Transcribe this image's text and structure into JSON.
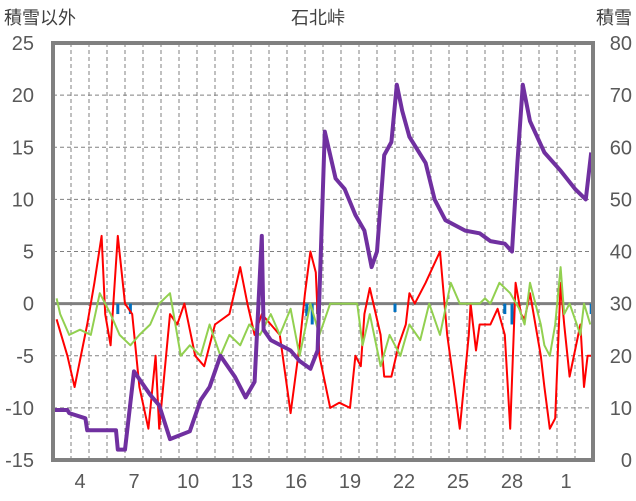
{
  "chart_data": {
    "type": "line",
    "title": "石北峠",
    "ylabel_left": "積雪以外",
    "ylabel_right": "積雪",
    "ylim_left": [
      -15,
      25
    ],
    "ylim_right": [
      0,
      80
    ],
    "yticks_left": [
      "25",
      "20",
      "15",
      "10",
      "5",
      "0",
      "-5",
      "-10",
      "-15"
    ],
    "yticks_right": [
      "80",
      "70",
      "60",
      "50",
      "40",
      "30",
      "20",
      "10",
      "0"
    ],
    "xlim_days": [
      0,
      30
    ],
    "xticks": [
      {
        "day": 1,
        "label": "4"
      },
      {
        "day": 4,
        "label": "7"
      },
      {
        "day": 7,
        "label": "10"
      },
      {
        "day": 10,
        "label": "13"
      },
      {
        "day": 13,
        "label": "16"
      },
      {
        "day": 16,
        "label": "19"
      },
      {
        "day": 19,
        "label": "22"
      },
      {
        "day": 22,
        "label": "25"
      },
      {
        "day": 25,
        "label": "28"
      },
      {
        "day": 28,
        "label": "1"
      }
    ],
    "grid": true,
    "colors": {
      "red": "#ff0000",
      "green": "#92d050",
      "purple": "#7030a0",
      "blue": "#0070c0",
      "axis": "#808080"
    },
    "series": [
      {
        "name": "red",
        "axis": "left",
        "points": [
          [
            0.2,
            -1.5
          ],
          [
            0.8,
            -5
          ],
          [
            1.2,
            -8
          ],
          [
            1.9,
            -2
          ],
          [
            2.3,
            2
          ],
          [
            2.7,
            6.5
          ],
          [
            2.9,
            -1
          ],
          [
            3.2,
            -4
          ],
          [
            3.6,
            6.5
          ],
          [
            4,
            0
          ],
          [
            4.4,
            -1
          ],
          [
            4.8,
            -8
          ],
          [
            5.3,
            -12
          ],
          [
            5.7,
            -5
          ],
          [
            5.9,
            -12
          ],
          [
            6.5,
            -1
          ],
          [
            6.9,
            -2
          ],
          [
            7.3,
            0
          ],
          [
            7.9,
            -5
          ],
          [
            8.4,
            -6
          ],
          [
            9,
            -2
          ],
          [
            9.8,
            -1
          ],
          [
            10.4,
            3.5
          ],
          [
            10.8,
            0
          ],
          [
            11.2,
            -3
          ],
          [
            11.6,
            -1
          ],
          [
            12.1,
            -2
          ],
          [
            12.6,
            -3
          ],
          [
            13.2,
            -10.5
          ],
          [
            13.7,
            -4
          ],
          [
            14,
            1
          ],
          [
            14.3,
            5
          ],
          [
            14.6,
            3
          ],
          [
            14.8,
            -5
          ],
          [
            15.4,
            -10
          ],
          [
            15.9,
            -9.5
          ],
          [
            16.5,
            -10
          ],
          [
            16.8,
            -5
          ],
          [
            17.1,
            -6
          ],
          [
            17.3,
            -1
          ],
          [
            17.6,
            1.5
          ],
          [
            18.2,
            -3
          ],
          [
            18.4,
            -7
          ],
          [
            18.8,
            -7
          ],
          [
            19.2,
            -4
          ],
          [
            19.6,
            -2
          ],
          [
            19.8,
            1
          ],
          [
            20.1,
            0
          ],
          [
            20.7,
            2
          ],
          [
            21.5,
            5
          ],
          [
            21.9,
            -3
          ],
          [
            22.3,
            -8
          ],
          [
            22.6,
            -12
          ],
          [
            23.1,
            -3
          ],
          [
            23.2,
            0
          ],
          [
            23.5,
            -4.5
          ],
          [
            23.7,
            -2
          ],
          [
            24.3,
            -2
          ],
          [
            24.7,
            -0.5
          ],
          [
            25.1,
            -3
          ],
          [
            25.4,
            -12
          ],
          [
            25.7,
            2
          ],
          [
            26,
            -1
          ],
          [
            26.2,
            -1.5
          ],
          [
            26.5,
            1
          ],
          [
            27.1,
            -5
          ],
          [
            27.3,
            -8
          ],
          [
            27.6,
            -12
          ],
          [
            27.9,
            -11
          ],
          [
            28.2,
            2
          ],
          [
            28.4,
            -2
          ],
          [
            28.7,
            -7
          ],
          [
            29.3,
            -2
          ],
          [
            29.5,
            -8
          ],
          [
            29.7,
            -5
          ],
          [
            29.95,
            -5
          ]
        ]
      },
      {
        "name": "green",
        "axis": "left",
        "points": [
          [
            0.2,
            0.5
          ],
          [
            0.4,
            -1
          ],
          [
            0.9,
            -3
          ],
          [
            1.5,
            -2.5
          ],
          [
            2.1,
            -3
          ],
          [
            2.6,
            1
          ],
          [
            3.2,
            -1
          ],
          [
            3.7,
            -3
          ],
          [
            4.3,
            -4
          ],
          [
            4.8,
            -3
          ],
          [
            5.4,
            -2
          ],
          [
            5.9,
            0
          ],
          [
            6.5,
            1
          ],
          [
            7.1,
            -5
          ],
          [
            7.6,
            -4
          ],
          [
            8.2,
            -5
          ],
          [
            8.7,
            -2
          ],
          [
            9.3,
            -5
          ],
          [
            9.8,
            -3
          ],
          [
            10.4,
            -4
          ],
          [
            10.9,
            -2
          ],
          [
            11.5,
            -3
          ],
          [
            12.1,
            -1
          ],
          [
            12.6,
            -3
          ],
          [
            13.2,
            -0.5
          ],
          [
            13.7,
            -5
          ],
          [
            14.3,
            0
          ],
          [
            14.8,
            -3
          ],
          [
            15.4,
            0
          ],
          [
            16.9,
            0
          ],
          [
            17.2,
            -4
          ],
          [
            17.6,
            -1
          ],
          [
            18.2,
            -6
          ],
          [
            18.7,
            -3
          ],
          [
            19.3,
            -5
          ],
          [
            19.8,
            -2
          ],
          [
            20.4,
            -3.5
          ],
          [
            20.9,
            0
          ],
          [
            21.5,
            -3
          ],
          [
            22.1,
            2
          ],
          [
            22.6,
            0
          ],
          [
            23.7,
            0
          ],
          [
            24,
            0.5
          ],
          [
            24.3,
            0
          ],
          [
            24.8,
            2
          ],
          [
            25.4,
            1
          ],
          [
            25.9,
            -0.5
          ],
          [
            26.2,
            -2
          ],
          [
            26.5,
            2
          ],
          [
            27.1,
            -2
          ],
          [
            27.3,
            -4
          ],
          [
            27.6,
            -5
          ],
          [
            27.9,
            -2
          ],
          [
            28.2,
            3.5
          ],
          [
            28.4,
            -1
          ],
          [
            28.7,
            0
          ],
          [
            29.3,
            -3
          ],
          [
            29.5,
            0
          ],
          [
            29.85,
            -2
          ]
        ]
      },
      {
        "name": "purple",
        "axis": "right",
        "points": [
          [
            0.1,
            9.6
          ],
          [
            0.8,
            9.6
          ],
          [
            0.9,
            9
          ],
          [
            1.8,
            8
          ],
          [
            1.9,
            5.7
          ],
          [
            3.5,
            5.7
          ],
          [
            3.6,
            2
          ],
          [
            4,
            2
          ],
          [
            4.5,
            17
          ],
          [
            5.4,
            12.5
          ],
          [
            5.9,
            10.5
          ],
          [
            6.5,
            4
          ],
          [
            7.6,
            5.5
          ],
          [
            8.2,
            11.5
          ],
          [
            8.7,
            14
          ],
          [
            9.3,
            20
          ],
          [
            10.1,
            16
          ],
          [
            10.7,
            12
          ],
          [
            11.2,
            15
          ],
          [
            11.6,
            43
          ],
          [
            11.7,
            25
          ],
          [
            12.1,
            23
          ],
          [
            13.2,
            21
          ],
          [
            13.7,
            19
          ],
          [
            14.3,
            17.5
          ],
          [
            14.7,
            21
          ],
          [
            15.1,
            63
          ],
          [
            15.7,
            54
          ],
          [
            16.2,
            52
          ],
          [
            16.8,
            47
          ],
          [
            17.3,
            44
          ],
          [
            17.7,
            37
          ],
          [
            18,
            40
          ],
          [
            18.4,
            58.5
          ],
          [
            18.8,
            61
          ],
          [
            19.1,
            72
          ],
          [
            19.4,
            67
          ],
          [
            19.8,
            62
          ],
          [
            20.7,
            57
          ],
          [
            21.2,
            50
          ],
          [
            21.8,
            46
          ],
          [
            22.9,
            44
          ],
          [
            23.7,
            43.5
          ],
          [
            24.3,
            42
          ],
          [
            25.1,
            41.5
          ],
          [
            25.5,
            40
          ],
          [
            25.8,
            57
          ],
          [
            26.1,
            72
          ],
          [
            26.5,
            65
          ],
          [
            27.3,
            59
          ],
          [
            28.2,
            55.5
          ],
          [
            29,
            52
          ],
          [
            29.6,
            50
          ],
          [
            29.9,
            59
          ]
        ]
      },
      {
        "name": "blue",
        "axis": "left",
        "type": "bar",
        "points": [
          [
            3.6,
            -1
          ],
          [
            4.3,
            -1
          ],
          [
            14.1,
            -1.2
          ],
          [
            14.4,
            -2
          ],
          [
            14.7,
            -1
          ],
          [
            19,
            -0.8
          ],
          [
            25.1,
            -1
          ],
          [
            25.5,
            -2
          ],
          [
            29.9,
            -1
          ]
        ]
      }
    ]
  }
}
